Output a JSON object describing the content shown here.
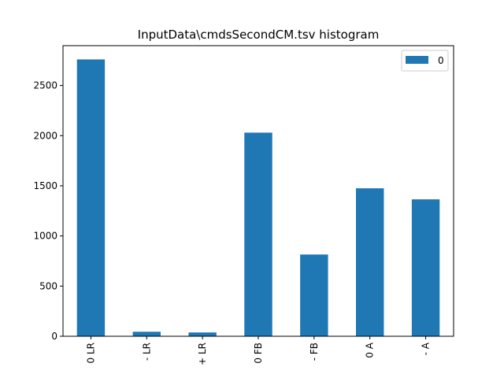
{
  "chart_data": {
    "type": "bar",
    "title": "InputData\\cmdsSecondCM.tsv histogram",
    "xlabel": "",
    "ylabel": "",
    "categories": [
      "0 LR",
      "- LR",
      "+ LR",
      "0 FB",
      "- FB",
      "0 A",
      "- A"
    ],
    "series": [
      {
        "name": "0",
        "values": [
          2760,
          45,
          38,
          2030,
          815,
          1475,
          1365
        ],
        "color": "#1f77b4"
      }
    ],
    "ylim": [
      0,
      2897
    ],
    "yticks": [
      0,
      500,
      1000,
      1500,
      2000,
      2500
    ],
    "grid": false,
    "legend": "top-right"
  }
}
